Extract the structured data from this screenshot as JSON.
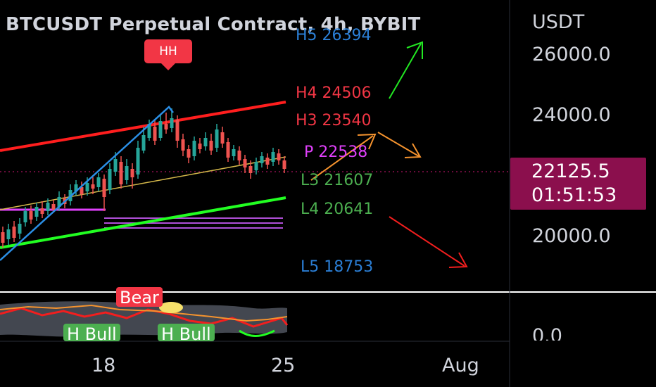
{
  "header": {
    "title": "BTCUSDT Perpetual Contract, 4h, BYBIT"
  },
  "price_axis": {
    "unit": "USDT",
    "ticks": [
      "26000.0",
      "24000.0",
      "20000.0"
    ],
    "last_price": "22125.5",
    "countdown": "01:51:53"
  },
  "indicator_axis": {
    "tick": "0.0"
  },
  "time_axis": {
    "ticks": [
      "18",
      "25",
      "Aug"
    ]
  },
  "pivot_levels": [
    {
      "label": "H5 26394",
      "color": "#2b7fd6"
    },
    {
      "label": "H4 24506",
      "color": "#f23645"
    },
    {
      "label": "H3 23540",
      "color": "#f23645"
    },
    {
      "label": "P 22538",
      "color": "#e040fb"
    },
    {
      "label": "L3 21607",
      "color": "#4caf50"
    },
    {
      "label": "L4 20641",
      "color": "#4caf50"
    },
    {
      "label": "L5 18753",
      "color": "#2b7fd6"
    }
  ],
  "annotations": {
    "hh": "HH",
    "bear": "Bear",
    "h_bull_1": "H Bull",
    "h_bull_2": "H Bull"
  },
  "colors": {
    "background": "#000000",
    "up_candle": "#26a69a",
    "down_candle": "#ef5350",
    "channel_top": "#ff1e1e",
    "channel_bottom": "#22ff22",
    "trend_line": "#2b8fe6",
    "midline": "#d4b84a",
    "last_price_bg": "#8b0f4d"
  }
}
